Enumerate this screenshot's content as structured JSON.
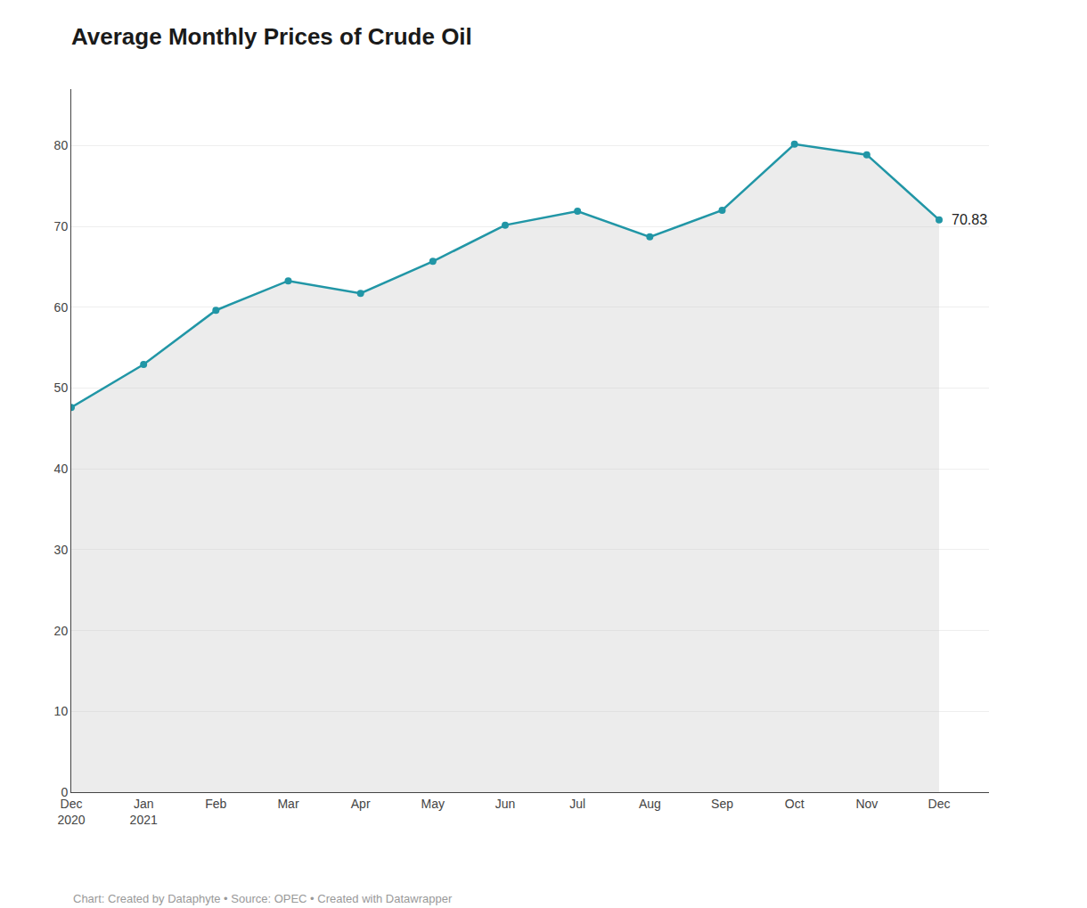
{
  "chart_data": {
    "type": "line",
    "title": "Average Monthly Prices of Crude Oil",
    "categories": [
      "Dec\n2020",
      "Jan\n2021",
      "Feb",
      "Mar",
      "Apr",
      "May",
      "Jun",
      "Jul",
      "Aug",
      "Sep",
      "Oct",
      "Nov",
      "Dec"
    ],
    "values": [
      47.62,
      52.93,
      59.63,
      63.27,
      61.72,
      65.68,
      70.17,
      71.88,
      68.71,
      72.0,
      80.18,
      78.88,
      70.83
    ],
    "color": "#2196a6",
    "marker": "circle",
    "ylim": [
      0,
      87
    ],
    "yticks": [
      0,
      10,
      20,
      30,
      40,
      50,
      60,
      70,
      80
    ],
    "grid": true,
    "annotation": "70.83",
    "caption": "Chart: Created by Dataphyte • Source: OPEC • Created with Datawrapper"
  }
}
